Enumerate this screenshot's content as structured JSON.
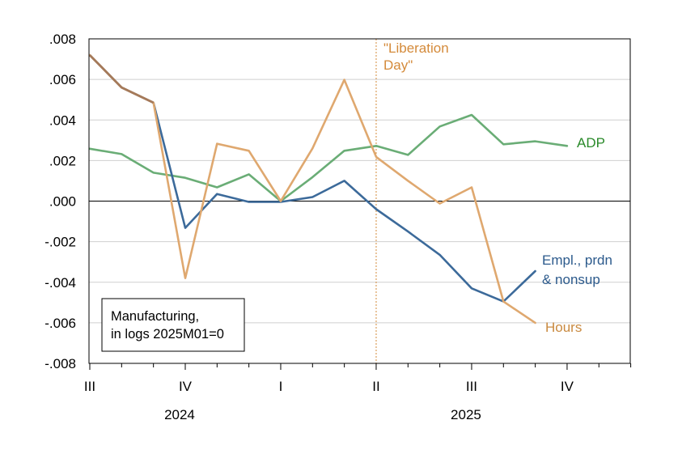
{
  "chart_data": {
    "type": "line",
    "title": "Manufacturing, in logs 2025M01=0",
    "note_lines": [
      "Manufacturing,",
      "in logs 2025M01=0"
    ],
    "ylim": [
      -0.008,
      0.008
    ],
    "yticks": [
      ".008",
      ".006",
      ".004",
      ".002",
      ".000",
      "-.002",
      "-.004",
      "-.006",
      "-.008"
    ],
    "ytick_values": [
      0.008,
      0.006,
      0.004,
      0.002,
      0.0,
      -0.002,
      -0.004,
      -0.006,
      -0.008
    ],
    "x": [
      "2024M07",
      "2024M08",
      "2024M09",
      "2024M10",
      "2024M11",
      "2024M12",
      "2025M01",
      "2025M02",
      "2025M03",
      "2025M04",
      "2025M05",
      "2025M06",
      "2025M07",
      "2025M08",
      "2025M09",
      "2025M10",
      "2025M11",
      "2025M12"
    ],
    "quarter_ticks": [
      {
        "label": "III",
        "index": 0
      },
      {
        "label": "IV",
        "index": 3
      },
      {
        "label": "I",
        "index": 6
      },
      {
        "label": "II",
        "index": 9
      },
      {
        "label": "III",
        "index": 12
      },
      {
        "label": "IV",
        "index": 15
      }
    ],
    "years": [
      {
        "label": "2024",
        "center_index": 3
      },
      {
        "label": "2025",
        "center_index": 12
      }
    ],
    "series": [
      {
        "name": "ADP",
        "label_lines": [
          "ADP"
        ],
        "color": "#6aad76",
        "label_color": "#2a8a2a",
        "values": [
          0.00258,
          0.00232,
          0.0014,
          0.00115,
          0.00068,
          0.00132,
          0.0,
          0.00118,
          0.00248,
          0.00272,
          0.00228,
          0.00368,
          0.00425,
          0.0028,
          0.00295,
          0.00272,
          null,
          null
        ]
      },
      {
        "name": "Empl., prdn & nonsup",
        "label_lines": [
          "Empl., prdn",
          "& nonsup"
        ],
        "color": "#3c6a9a",
        "label_color": "#2c5a8c",
        "values": [
          0.0072,
          0.0056,
          0.00485,
          -0.00132,
          0.00035,
          -4e-05,
          -4e-05,
          0.0002,
          0.001,
          -0.0004,
          -0.0015,
          -0.00265,
          -0.0043,
          -0.00495,
          -0.00345,
          null,
          null,
          null
        ]
      },
      {
        "name": "Hours",
        "label_lines": [
          "Hours"
        ],
        "color": "#dfa86f",
        "label_color": "#c98a40",
        "values": [
          0.0072,
          0.0056,
          0.00485,
          -0.0038,
          0.00283,
          0.00248,
          0.0,
          0.0026,
          0.00598,
          0.00218,
          0.001,
          -0.00012,
          0.00068,
          -0.00495,
          -0.006,
          null,
          null,
          null
        ]
      }
    ],
    "annotation": {
      "label_lines": [
        "\"Liberation",
        "Day\""
      ],
      "at_index": 9,
      "color": "#d48a3a"
    }
  }
}
